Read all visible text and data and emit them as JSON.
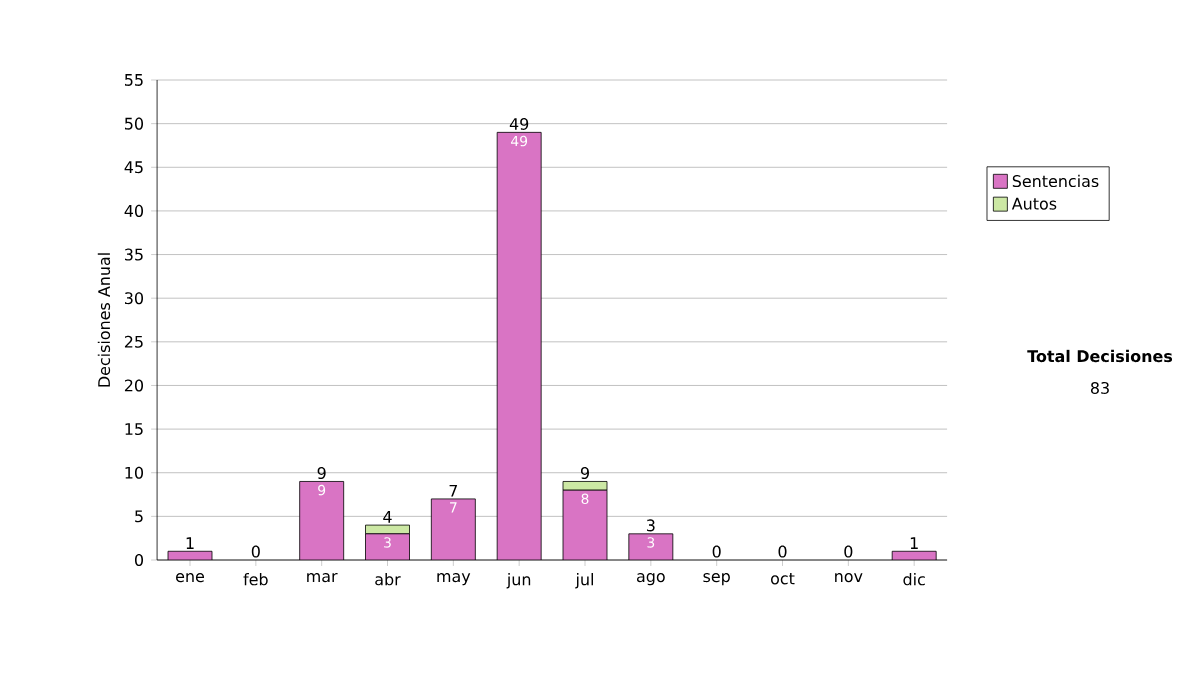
{
  "chart_data": {
    "type": "bar",
    "stacked": true,
    "ylabel": "Decisiones Anual",
    "categories": [
      "ene",
      "feb",
      "mar",
      "abr",
      "may",
      "jun",
      "jul",
      "ago",
      "sep",
      "oct",
      "nov",
      "dic"
    ],
    "series": [
      {
        "name": "Sentencias",
        "color": "#d974c4",
        "values": [
          1,
          0,
          9,
          3,
          7,
          49,
          8,
          3,
          0,
          0,
          0,
          1
        ],
        "value_labels": [
          null,
          null,
          "9",
          "3",
          "7",
          "49",
          "8",
          "3",
          null,
          null,
          null,
          null
        ]
      },
      {
        "name": "Autos",
        "color": "#cce8a4",
        "values": [
          0,
          0,
          0,
          1,
          0,
          0,
          1,
          0,
          0,
          0,
          0,
          0
        ]
      }
    ],
    "totals": [
      "1",
      "0",
      "9",
      "4",
      "7",
      "49",
      "9",
      "3",
      "0",
      "0",
      "0",
      "1"
    ],
    "ylim": [
      0,
      55
    ],
    "yticks": [
      0,
      5,
      10,
      15,
      20,
      25,
      30,
      35,
      40,
      45,
      50,
      55
    ],
    "grid": "y",
    "legend": "right",
    "annotations": [
      "Total Decisiones",
      "83"
    ]
  }
}
